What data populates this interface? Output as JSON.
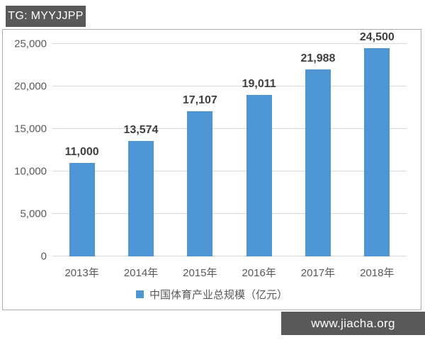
{
  "badges": {
    "top_left": "TG: MYYJJPP",
    "bottom_right": "www.jiacha.org"
  },
  "colors": {
    "bar_fill": "#4e95d3",
    "badge_background": "#595959",
    "badge_text": "#ffffff",
    "gridline": "#d9d9d9",
    "axis_text": "#595959",
    "value_label_text": "#3f3f3f",
    "frame_border": "#aeaeae"
  },
  "chart_data": {
    "type": "bar",
    "title": "",
    "xlabel": "",
    "ylabel": "",
    "categories": [
      "2013年",
      "2014年",
      "2015年",
      "2016年",
      "2017年",
      "2018年"
    ],
    "values": [
      11000,
      13574,
      17107,
      19011,
      21988,
      24500
    ],
    "value_labels": [
      "11,000",
      "13,574",
      "17,107",
      "19,011",
      "21,988",
      "24,500"
    ],
    "series_name": "中国体育产业总规模（亿元）",
    "legend_entries": [
      "中国体育产业总规模（亿元）"
    ],
    "legend_position": "bottom",
    "ylim": [
      0,
      25000
    ],
    "ytick_interval": 5000,
    "yticks": [
      0,
      5000,
      10000,
      15000,
      20000,
      25000
    ],
    "ytick_labels": [
      "0",
      "5,000",
      "10,000",
      "15,000",
      "20,000",
      "25,000"
    ],
    "grid": true
  }
}
